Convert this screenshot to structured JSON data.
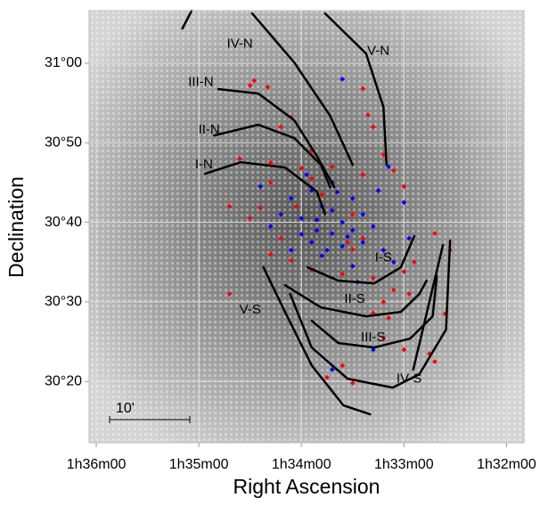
{
  "chart_data": {
    "type": "scatter",
    "x_label": "Right Ascension",
    "y_label": "Declination",
    "scale_bar_label": "10'",
    "xlim": [
      36.07,
      31.83
    ],
    "ylim": [
      12.3,
      66.6
    ],
    "xticks": [
      {
        "value": 36,
        "label": "1h36m00"
      },
      {
        "value": 35,
        "label": "1h35m00"
      },
      {
        "value": 34,
        "label": "1h34m00"
      },
      {
        "value": 33,
        "label": "1h33m00"
      },
      {
        "value": 32,
        "label": "1h32m00"
      }
    ],
    "yticks": [
      {
        "value": 20,
        "label": "30°20"
      },
      {
        "value": 30,
        "label": "30°30"
      },
      {
        "value": 40,
        "label": "30°40"
      },
      {
        "value": 50,
        "label": "30°50"
      },
      {
        "value": 60,
        "label": "31°00"
      }
    ],
    "grid": true,
    "series": [
      {
        "name": "red",
        "color": "#ff0000",
        "x": [
          34.5,
          34.46,
          34.33,
          34.1,
          34.2,
          33.9,
          33.7,
          33.4,
          33.35,
          33.3,
          33.2,
          33.4,
          34.6,
          34.3,
          34.0,
          33.9,
          34.3,
          34.7,
          34.5,
          34.2,
          34.3,
          34.1,
          33.9,
          33.6,
          33.3,
          33.0,
          32.9,
          33.1,
          33.2,
          33.15,
          33.2,
          33.0,
          33.6,
          33.75,
          33.5,
          32.7,
          32.55,
          32.6,
          32.75,
          32.7,
          34.7,
          33.5,
          33.8,
          34.05,
          33.4,
          33.5,
          34.4,
          33.0,
          33.1,
          33.55,
          32.95,
          33.3
        ],
        "y": [
          57.2,
          57.8,
          57.0,
          53.2,
          52.0,
          49,
          47,
          56.8,
          53.5,
          52,
          48.5,
          46,
          48,
          47.5,
          46.8,
          45.5,
          45,
          42,
          40.5,
          38,
          36,
          35.2,
          34,
          33.5,
          33,
          33.8,
          35,
          31.5,
          30,
          28,
          25.5,
          24,
          22,
          20.5,
          19.8,
          38.6,
          36.5,
          28.5,
          23.5,
          22.5,
          31,
          41,
          43.5,
          42,
          38,
          36.6,
          41.8,
          44.5,
          46.5,
          37.5,
          31,
          28.6
        ]
      },
      {
        "name": "blue",
        "color": "#0000ff",
        "x": [
          33.9,
          33.7,
          33.8,
          34.0,
          33.85,
          33.7,
          33.6,
          33.5,
          33.4,
          33.6,
          33.75,
          33.9,
          34.0,
          34.2,
          34.1,
          33.95,
          33.5,
          33.3,
          33.2,
          33.1,
          33.5,
          33.8,
          34.1,
          33.65,
          33.4,
          33.55,
          33.85,
          33.7,
          34.3,
          33.25,
          33.15,
          33.6,
          33.3,
          33.7,
          32.95,
          33.0,
          34.4,
          33.45
        ],
        "y": [
          44,
          45,
          42,
          40.5,
          39,
          41.5,
          40,
          39,
          37.5,
          37,
          36.5,
          37.5,
          38.5,
          41,
          43,
          46,
          43,
          39.5,
          36.5,
          35,
          34.5,
          35.8,
          36.5,
          43.8,
          41,
          38.2,
          40.3,
          38.6,
          39.5,
          44,
          47,
          58,
          24,
          21.5,
          38,
          42.5,
          44.5,
          32.5
        ]
      }
    ],
    "arms": [
      {
        "name": "IV-N",
        "label_at": [
          34.6,
          62.4
        ],
        "x": [
          35.16,
          35.07,
          null,
          34.48,
          34.07,
          33.72,
          33.5
        ],
        "y": [
          64.36,
          66.6,
          null,
          66.26,
          60.1,
          53.39,
          47.23
        ]
      },
      {
        "name": "V-N",
        "label_at": [
          33.25,
          61.5
        ],
        "x": [
          33.77,
          33.37,
          33.2,
          33.17
        ],
        "y": [
          66.26,
          61.22,
          54.51,
          47.23
        ]
      },
      {
        "name": "III-N",
        "label_at": [
          34.98,
          57.6
        ],
        "x": [
          34.81,
          34.42,
          34.07,
          33.85,
          33.68
        ],
        "y": [
          56.75,
          56.19,
          52.83,
          48.35,
          44.43
        ]
      },
      {
        "name": "II-N",
        "label_at": [
          34.9,
          51.6
        ],
        "x": [
          34.85,
          34.42,
          34.07,
          33.81,
          33.72
        ],
        "y": [
          50.92,
          52.27,
          50.59,
          47.23,
          44.43
        ]
      },
      {
        "name": "I-N",
        "label_at": [
          34.95,
          47.2
        ],
        "x": [
          34.94,
          34.59,
          34.16,
          33.85,
          33.77
        ],
        "y": [
          46.11,
          47.56,
          46.89,
          43.87,
          41.07
        ]
      },
      {
        "name": "I-S",
        "label_at": [
          33.2,
          35.5
        ],
        "x": [
          33.94,
          33.64,
          33.29,
          33.03,
          32.9
        ],
        "y": [
          34.35,
          32.67,
          32.33,
          34.35,
          38.27
        ]
      },
      {
        "name": "II-S",
        "label_at": [
          33.48,
          30.3
        ],
        "x": [
          34.16,
          33.81,
          33.37,
          33.03,
          32.85,
          32.78
        ],
        "y": [
          32.11,
          29.31,
          28.19,
          28.75,
          31.0,
          32.67
        ]
      },
      {
        "name": "III-S",
        "label_at": [
          33.3,
          25.5
        ],
        "x": [
          33.9,
          33.64,
          33.29,
          32.94,
          32.72,
          32.68
        ],
        "y": [
          27.63,
          24.83,
          24.27,
          25.39,
          28.19,
          33.23
        ]
      },
      {
        "name": "IV-S",
        "label_at": [
          32.95,
          20.3
        ],
        "x": [
          34.11,
          33.9,
          33.55,
          33.11,
          32.85,
          32.59,
          32.55,
          null,
          32.91,
          32.62
        ],
        "y": [
          31.0,
          24.27,
          20.35,
          19.23,
          20.91,
          26.51,
          37.71,
          null,
          21.47,
          37.15
        ]
      },
      {
        "name": "V-S",
        "label_at": [
          34.5,
          29.0
        ],
        "x": [
          34.37,
          34.16,
          33.9,
          33.59,
          33.33
        ],
        "y": [
          34.35,
          28.75,
          22.03,
          16.99,
          15.87
        ]
      }
    ]
  }
}
